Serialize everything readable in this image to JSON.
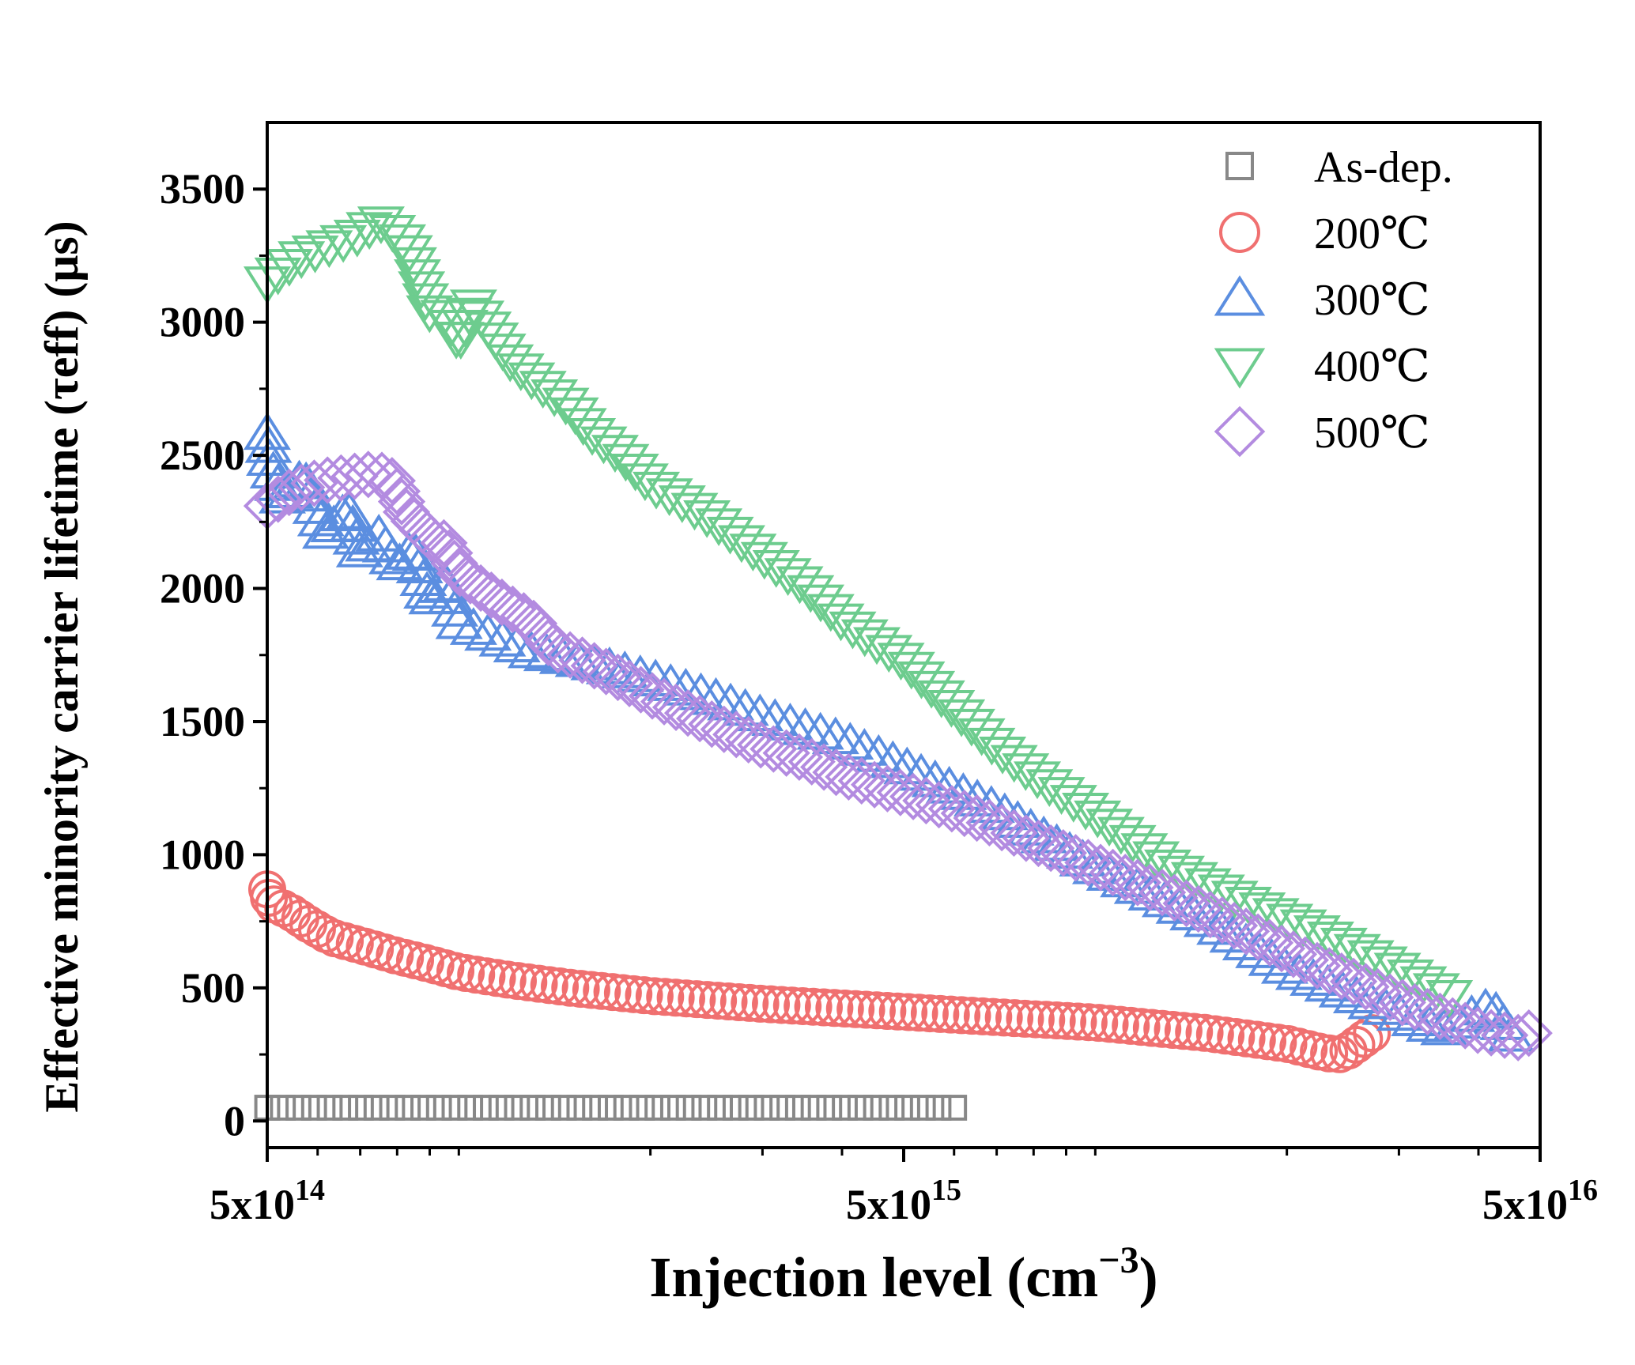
{
  "chart_data": {
    "type": "scatter",
    "title": "",
    "xlabel": "Injection level (cm",
    "xlabel_sup": "−3",
    "xlabel_close": ")",
    "ylabel": "Effective minority carrier lifetime (τeff) (μs)",
    "xscale": "log",
    "xlim": [
      500000000000000.0,
      5e+16
    ],
    "ylim": [
      -100,
      3750
    ],
    "x_tick_labels": [
      {
        "value": 500000000000000.0,
        "base": "5x10",
        "exp": "14"
      },
      {
        "value": 5000000000000000.0,
        "base": "5x10",
        "exp": "15"
      },
      {
        "value": 5e+16,
        "base": "5x10",
        "exp": "16"
      }
    ],
    "y_ticks": [
      0,
      500,
      1000,
      1500,
      2000,
      2500,
      3000,
      3500
    ],
    "legend_position": "top-right",
    "series": [
      {
        "name": "As-dep.",
        "marker": "square",
        "color": "#888888",
        "points": [
          [
            500000000000000.0,
            50
          ],
          [
            6000000000000000.0,
            50
          ]
        ],
        "count": 45
      },
      {
        "name": "200℃",
        "marker": "circle",
        "color": "#f07070",
        "points": [
          [
            500000000000000.0,
            870
          ],
          [
            505000000000000.0,
            820
          ],
          [
            540000000000000.0,
            790
          ],
          [
            580000000000000.0,
            740
          ],
          [
            630000000000000.0,
            690
          ],
          [
            700000000000000.0,
            660
          ],
          [
            800000000000000.0,
            620
          ],
          [
            900000000000000.0,
            590
          ],
          [
            1000000000000000.0,
            560
          ],
          [
            1200000000000000.0,
            530
          ],
          [
            1500000000000000.0,
            500
          ],
          [
            2000000000000000.0,
            470
          ],
          [
            3000000000000000.0,
            440
          ],
          [
            5000000000000000.0,
            410
          ],
          [
            7000000000000000.0,
            390
          ],
          [
            1e+16,
            370
          ],
          [
            1.5e+16,
            330
          ],
          [
            2e+16,
            290
          ],
          [
            2.3e+16,
            255
          ],
          [
            2.45e+16,
            250
          ],
          [
            2.55e+16,
            280
          ],
          [
            2.65e+16,
            310
          ],
          [
            2.72e+16,
            330
          ]
        ],
        "count": 110
      },
      {
        "name": "300℃",
        "marker": "triangle-up",
        "color": "#5b8ee0",
        "points": [
          [
            500000000000000.0,
            2580
          ],
          [
            505000000000000.0,
            2470
          ],
          [
            530000000000000.0,
            2330
          ],
          [
            570000000000000.0,
            2420
          ],
          [
            620000000000000.0,
            2200
          ],
          [
            670000000000000.0,
            2300
          ],
          [
            700000000000000.0,
            2130
          ],
          [
            750000000000000.0,
            2200
          ],
          [
            800000000000000.0,
            2080
          ],
          [
            850000000000000.0,
            2150
          ],
          [
            900000000000000.0,
            1950
          ],
          [
            950000000000000.0,
            2030
          ],
          [
            1000000000000000.0,
            1870
          ],
          [
            1100000000000000.0,
            1830
          ],
          [
            1300000000000000.0,
            1760
          ],
          [
            1600000000000000.0,
            1720
          ],
          [
            2000000000000000.0,
            1660
          ],
          [
            2500000000000000.0,
            1590
          ],
          [
            3000000000000000.0,
            1520
          ],
          [
            4000000000000000.0,
            1430
          ],
          [
            5000000000000000.0,
            1330
          ],
          [
            7000000000000000.0,
            1170
          ],
          [
            1e+16,
            950
          ],
          [
            1.5e+16,
            750
          ],
          [
            2e+16,
            570
          ],
          [
            3e+16,
            400
          ],
          [
            3.5e+16,
            340
          ],
          [
            4.2e+16,
            430
          ],
          [
            4.5e+16,
            320
          ]
        ],
        "count": 110
      },
      {
        "name": "400℃",
        "marker": "triangle-down",
        "color": "#6dcc8e",
        "points": [
          [
            500000000000000.0,
            3150
          ],
          [
            530000000000000.0,
            3200
          ],
          [
            560000000000000.0,
            3240
          ],
          [
            600000000000000.0,
            3270
          ],
          [
            650000000000000.0,
            3300
          ],
          [
            700000000000000.0,
            3330
          ],
          [
            750000000000000.0,
            3380
          ],
          [
            790000000000000.0,
            3340
          ],
          [
            830000000000000.0,
            3290
          ],
          [
            900000000000000.0,
            3040
          ],
          [
            960000000000000.0,
            3020
          ],
          [
            1000000000000000.0,
            2920
          ],
          [
            1050000000000000.0,
            3070
          ],
          [
            1200000000000000.0,
            2860
          ],
          [
            1300000000000000.0,
            2790
          ],
          [
            1500000000000000.0,
            2680
          ],
          [
            1600000000000000.0,
            2590
          ],
          [
            1800000000000000.0,
            2500
          ],
          [
            2000000000000000.0,
            2390
          ],
          [
            2200000000000000.0,
            2340
          ],
          [
            2500000000000000.0,
            2260
          ],
          [
            3000000000000000.0,
            2120
          ],
          [
            3500000000000000.0,
            2010
          ],
          [
            4000000000000000.0,
            1880
          ],
          [
            5000000000000000.0,
            1730
          ],
          [
            6000000000000000.0,
            1550
          ],
          [
            7000000000000000.0,
            1400
          ],
          [
            8000000000000000.0,
            1300
          ],
          [
            1e+16,
            1150
          ],
          [
            1.3e+16,
            960
          ],
          [
            1.7e+16,
            830
          ],
          [
            2.2e+16,
            720
          ],
          [
            3e+16,
            570
          ],
          [
            3.6e+16,
            470
          ]
        ],
        "count": 110
      },
      {
        "name": "500℃",
        "marker": "diamond",
        "color": "#b38be0",
        "points": [
          [
            500000000000000.0,
            2310
          ],
          [
            540000000000000.0,
            2360
          ],
          [
            580000000000000.0,
            2390
          ],
          [
            630000000000000.0,
            2410
          ],
          [
            680000000000000.0,
            2420
          ],
          [
            730000000000000.0,
            2430
          ],
          [
            780000000000000.0,
            2420
          ],
          [
            830000000000000.0,
            2280
          ],
          [
            900000000000000.0,
            2190
          ],
          [
            950000000000000.0,
            2170
          ],
          [
            1000000000000000.0,
            2060
          ],
          [
            1100000000000000.0,
            1990
          ],
          [
            1200000000000000.0,
            1930
          ],
          [
            1300000000000000.0,
            1880
          ],
          [
            1400000000000000.0,
            1780
          ],
          [
            1600000000000000.0,
            1720
          ],
          [
            1800000000000000.0,
            1660
          ],
          [
            2000000000000000.0,
            1600
          ],
          [
            2300000000000000.0,
            1530
          ],
          [
            2500000000000000.0,
            1490
          ],
          [
            3000000000000000.0,
            1410
          ],
          [
            3500000000000000.0,
            1360
          ],
          [
            4000000000000000.0,
            1300
          ],
          [
            5000000000000000.0,
            1230
          ],
          [
            6000000000000000.0,
            1170
          ],
          [
            7000000000000000.0,
            1110
          ],
          [
            8000000000000000.0,
            1050
          ],
          [
            1e+16,
            960
          ],
          [
            1.3e+16,
            850
          ],
          [
            1.7e+16,
            720
          ],
          [
            2.2e+16,
            590
          ],
          [
            3e+16,
            450
          ],
          [
            4e+16,
            340
          ],
          [
            4.7e+16,
            310
          ],
          [
            4.8e+16,
            330
          ]
        ],
        "count": 110
      }
    ]
  }
}
